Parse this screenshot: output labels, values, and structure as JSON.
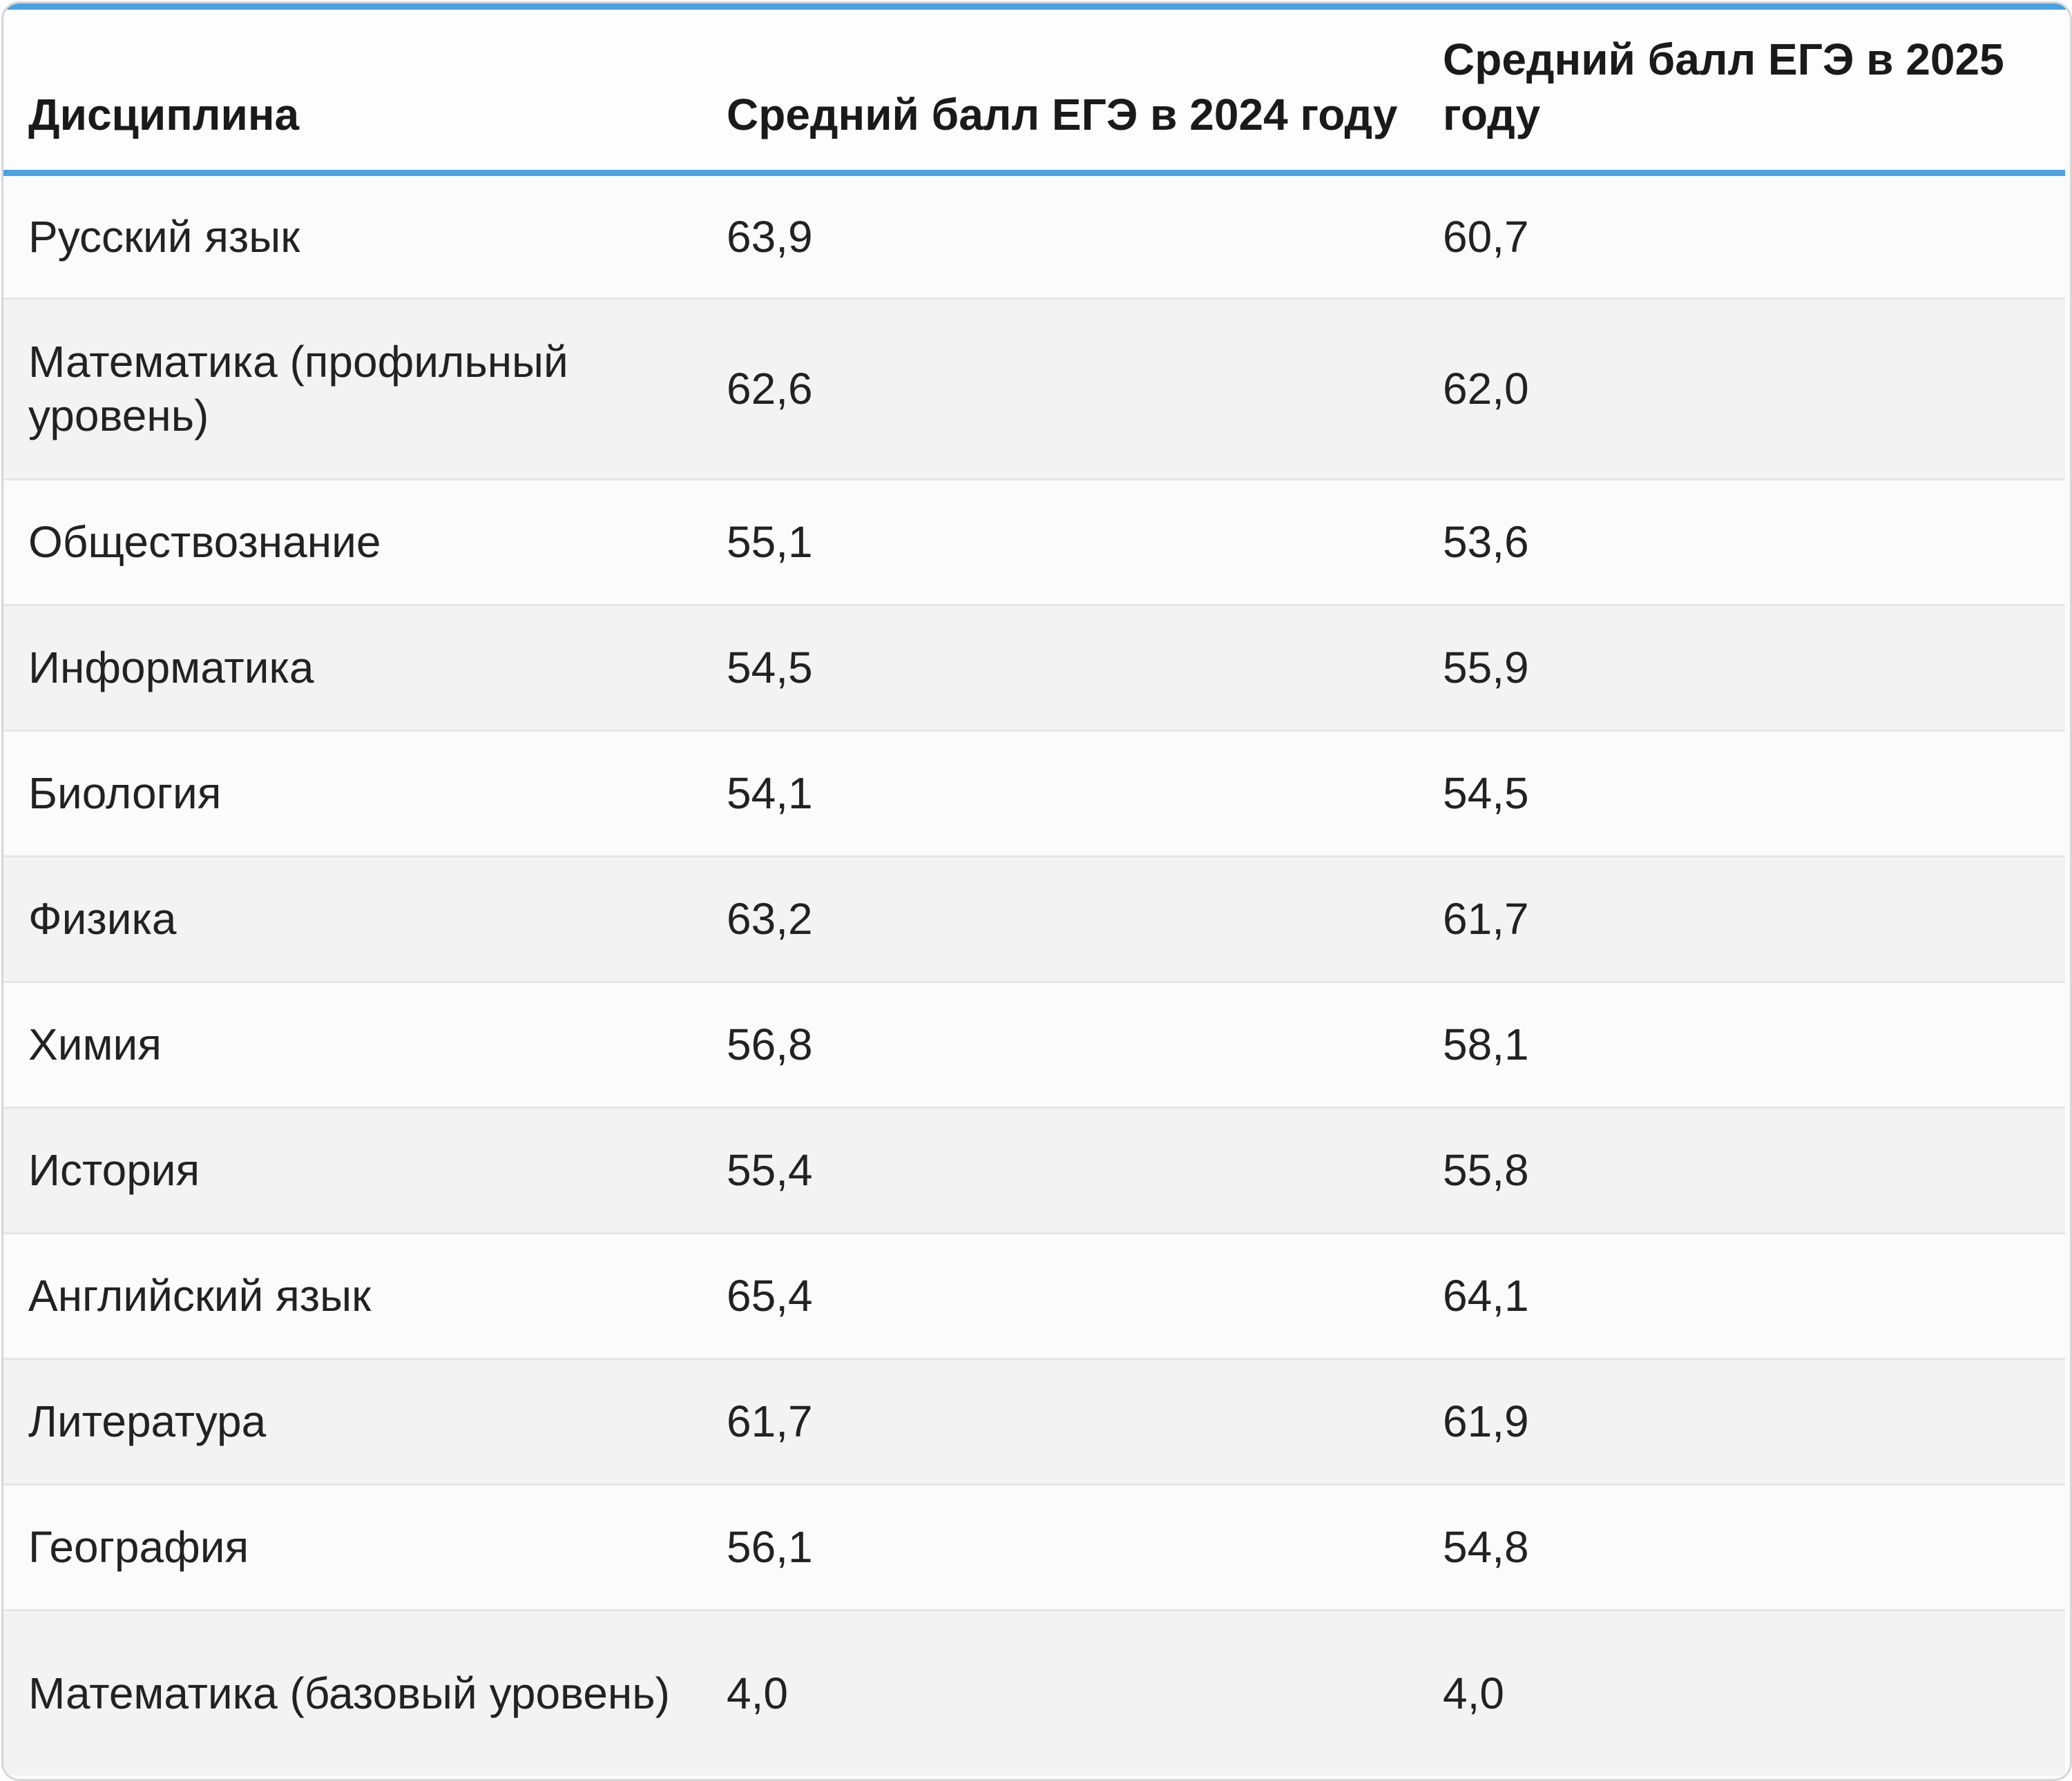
{
  "table": {
    "headers": [
      "Дисциплина",
      "Средний балл ЕГЭ в 2024 году",
      "Средний балл ЕГЭ в 2025 году"
    ],
    "rows": [
      [
        "Русский язык",
        "63,9",
        "60,7"
      ],
      [
        "Математика (профильный уровень)",
        "62,6",
        "62,0"
      ],
      [
        "Обществознание",
        "55,1",
        "53,6"
      ],
      [
        "Информатика",
        "54,5",
        "55,9"
      ],
      [
        "Биология",
        "54,1",
        "54,5"
      ],
      [
        "Физика",
        "63,2",
        "61,7"
      ],
      [
        "Химия",
        "56,8",
        "58,1"
      ],
      [
        "История",
        "55,4",
        "55,8"
      ],
      [
        "Английский язык",
        "65,4",
        "64,1"
      ],
      [
        "Литература",
        "61,7",
        "61,9"
      ],
      [
        "География",
        "56,1",
        "54,8"
      ],
      [
        "Математика (базовый уровень)",
        "4,0",
        "4,0"
      ]
    ]
  },
  "colors": {
    "accent": "#4aa2e2",
    "row_alt": "#f3f3f3",
    "row": "#fbfbfb",
    "divider": "#e6e6e6"
  }
}
